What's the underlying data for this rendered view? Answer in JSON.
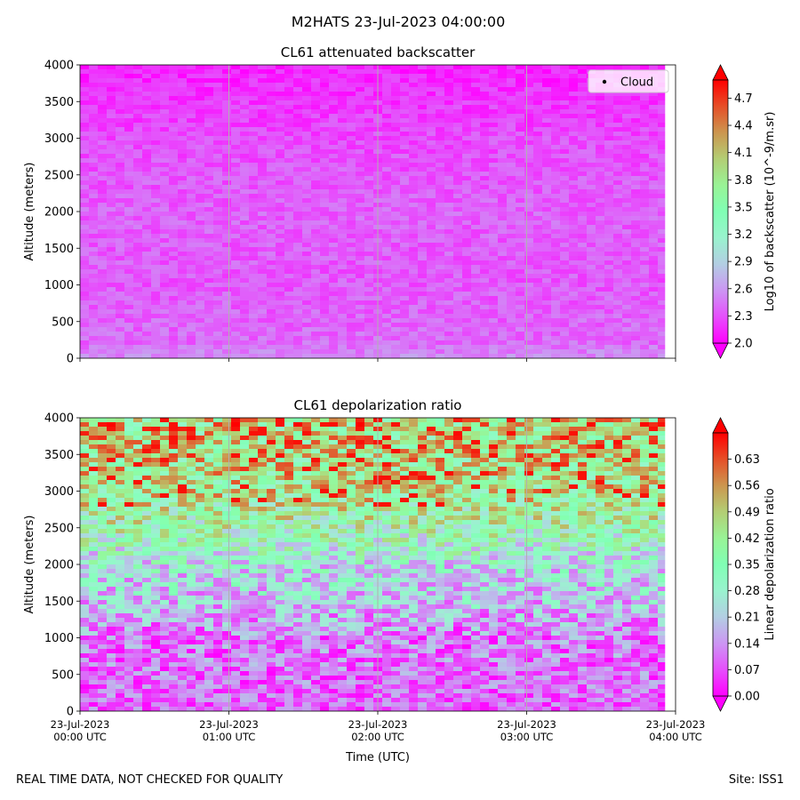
{
  "figure": {
    "title": "M2HATS 23-Jul-2023 04:00:00",
    "footer_left": "REAL TIME DATA, NOT CHECKED FOR QUALITY",
    "footer_right": "Site: ISS1"
  },
  "chart_data": [
    {
      "type": "heatmap",
      "title": "CL61 attenuated backscatter",
      "xlabel": "",
      "ylabel": "Altitude (meters)",
      "ylim": [
        0,
        4000
      ],
      "yticks": [
        0,
        500,
        1000,
        1500,
        2000,
        2500,
        3000,
        3500,
        4000
      ],
      "xlim": [
        0,
        4
      ],
      "xticks": [
        0,
        1,
        2,
        3,
        4
      ],
      "xtick_labels": [],
      "grid": "vertical lines at each hour",
      "colormap": "rainbow",
      "colorbar": {
        "label": "Log10 of backscatter (10^-9/m.sr)",
        "range": [
          2.0,
          4.9
        ],
        "ticks": [
          "2.0",
          "2.3",
          "2.6",
          "2.9",
          "3.2",
          "3.5",
          "3.8",
          "4.1",
          "4.4",
          "4.7"
        ]
      },
      "legend": {
        "entries": [
          "Cloud"
        ],
        "placement": "top-right"
      },
      "profile": [
        {
          "altitude": 0,
          "value": 2.55
        },
        {
          "altitude": 200,
          "value": 2.4
        },
        {
          "altitude": 1000,
          "value": 2.33
        },
        {
          "altitude": 2000,
          "value": 2.36
        },
        {
          "altitude": 3000,
          "value": 2.28
        },
        {
          "altitude": 3500,
          "value": 2.2
        },
        {
          "altitude": 4000,
          "value": 2.12
        }
      ]
    },
    {
      "type": "heatmap",
      "title": "CL61 depolarization ratio",
      "xlabel": "Time (UTC)",
      "ylabel": "Altitude (meters)",
      "ylim": [
        0,
        4000
      ],
      "yticks": [
        0,
        500,
        1000,
        1500,
        2000,
        2500,
        3000,
        3500,
        4000
      ],
      "xlim": [
        0,
        4
      ],
      "xticks": [
        0,
        1,
        2,
        3,
        4
      ],
      "xtick_labels": [
        [
          "23-Jul-2023",
          "00:00 UTC"
        ],
        [
          "23-Jul-2023",
          "01:00 UTC"
        ],
        [
          "23-Jul-2023",
          "02:00 UTC"
        ],
        [
          "23-Jul-2023",
          "03:00 UTC"
        ],
        [
          "23-Jul-2023",
          "04:00 UTC"
        ]
      ],
      "grid": "vertical lines at each hour",
      "colormap": "rainbow",
      "colorbar": {
        "label": "Linear depolarization ratio",
        "range": [
          0.0,
          0.7
        ],
        "ticks": [
          "0.00",
          "0.07",
          "0.14",
          "0.21",
          "0.28",
          "0.35",
          "0.42",
          "0.49",
          "0.56",
          "0.63"
        ]
      },
      "profile": [
        {
          "altitude": 0,
          "value": 0.09
        },
        {
          "altitude": 1000,
          "value": 0.11
        },
        {
          "altitude": 1500,
          "value": 0.2
        },
        {
          "altitude": 2000,
          "value": 0.25
        },
        {
          "altitude": 2500,
          "value": 0.36
        },
        {
          "altitude": 3000,
          "value": 0.45
        },
        {
          "altitude": 3500,
          "value": 0.48
        },
        {
          "altitude": 4000,
          "value": 0.5
        }
      ]
    }
  ]
}
